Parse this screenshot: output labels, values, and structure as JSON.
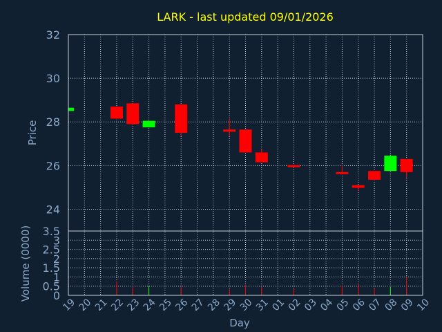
{
  "chart_data": {
    "type": "candlestick",
    "title": "LARK - last updated 09/01/2026",
    "xlabel": "Day",
    "price_panel": {
      "ylabel": "Price",
      "ylim": [
        23,
        32
      ],
      "yticks": [
        24,
        26,
        28,
        30,
        32
      ]
    },
    "volume_panel": {
      "ylabel": "Volume (0000)",
      "ylim": [
        0,
        3.5
      ],
      "yticks": [
        "0",
        "0.5",
        "1",
        "1.5",
        "2",
        "2.5",
        "3",
        "3.5"
      ]
    },
    "x_ticks": [
      "19",
      "20",
      "21",
      "22",
      "23",
      "24",
      "25",
      "26",
      "27",
      "28",
      "29",
      "30",
      "31",
      "01",
      "02",
      "03",
      "04",
      "05",
      "06",
      "07",
      "08",
      "09",
      "10"
    ],
    "grid": true,
    "colors": {
      "up": "#00ff00",
      "down": "#ff0000",
      "grid": "#c8d0d8",
      "title": "#ffff00",
      "label": "#8aa8c8",
      "background": "#102030"
    },
    "candles": [
      {
        "day": "19",
        "open": 28.5,
        "high": 28.65,
        "low": 28.5,
        "close": 28.65,
        "volume": 0.02
      },
      {
        "day": "22",
        "open": 28.7,
        "high": 28.7,
        "low": 28.15,
        "close": 28.15,
        "volume": 0.75
      },
      {
        "day": "23",
        "open": 28.85,
        "high": 28.85,
        "low": 27.85,
        "close": 27.9,
        "volume": 0.45
      },
      {
        "day": "24",
        "open": 27.75,
        "high": 28.05,
        "low": 27.75,
        "close": 28.05,
        "volume": 0.5
      },
      {
        "day": "26",
        "open": 28.8,
        "high": 28.8,
        "low": 27.35,
        "close": 27.5,
        "volume": 0.45
      },
      {
        "day": "29",
        "open": 27.65,
        "high": 28.15,
        "low": 27.35,
        "close": 27.55,
        "volume": 0.35
      },
      {
        "day": "30",
        "open": 27.65,
        "high": 27.65,
        "low": 26.6,
        "close": 26.6,
        "volume": 0.55
      },
      {
        "day": "31",
        "open": 26.6,
        "high": 26.75,
        "low": 26.15,
        "close": 26.15,
        "volume": 0.45
      },
      {
        "day": "02",
        "open": 26.02,
        "high": 26.02,
        "low": 25.9,
        "close": 25.98,
        "volume": 0.35
      },
      {
        "day": "05",
        "open": 25.7,
        "high": 26.0,
        "low": 25.6,
        "close": 25.62,
        "volume": 0.5
      },
      {
        "day": "06",
        "open": 25.1,
        "high": 25.1,
        "low": 24.85,
        "close": 24.98,
        "volume": 0.6
      },
      {
        "day": "07",
        "open": 25.75,
        "high": 25.75,
        "low": 25.3,
        "close": 25.35,
        "volume": 0.4
      },
      {
        "day": "08",
        "open": 25.75,
        "high": 26.5,
        "low": 25.75,
        "close": 26.45,
        "volume": 0.45
      },
      {
        "day": "09",
        "open": 26.3,
        "high": 26.3,
        "low": 25.45,
        "close": 25.7,
        "volume": 1.0
      }
    ]
  }
}
